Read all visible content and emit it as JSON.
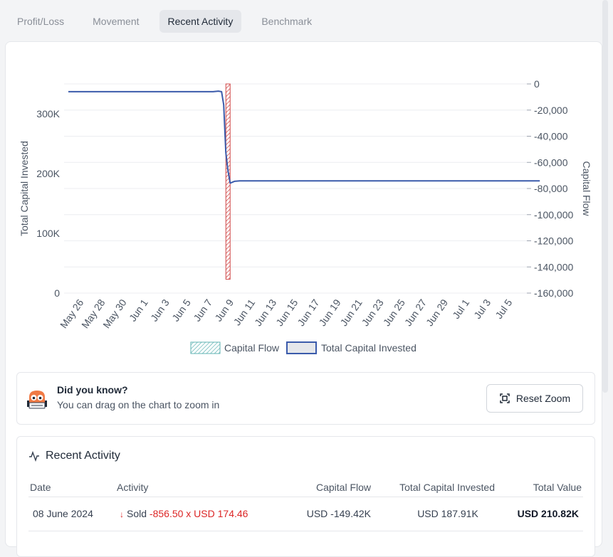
{
  "tabs": [
    {
      "label": "Profit/Loss",
      "active": false
    },
    {
      "label": "Movement",
      "active": false
    },
    {
      "label": "Recent Activity",
      "active": true
    },
    {
      "label": "Benchmark",
      "active": false
    }
  ],
  "chart_data": {
    "type": "line",
    "title": "",
    "x_dates": [
      "May 26",
      "May 28",
      "May 30",
      "Jun 1",
      "Jun 3",
      "Jun 5",
      "Jun 7",
      "Jun 9",
      "Jun 11",
      "Jun 13",
      "Jun 15",
      "Jun 17",
      "Jun 19",
      "Jun 21",
      "Jun 23",
      "Jun 25",
      "Jun 27",
      "Jun 29",
      "Jul 1",
      "Jul 3",
      "Jul 5"
    ],
    "left_axis": {
      "label": "Total Capital Invested",
      "ticks": [
        "0",
        "100K",
        "200K",
        "300K"
      ],
      "ylim": [
        0,
        350000
      ]
    },
    "right_axis": {
      "label": "Capital Flow",
      "ticks": [
        "0",
        "-20,000",
        "-40,000",
        "-60,000",
        "-80,000",
        "-100,000",
        "-120,000",
        "-140,000",
        "-160,000"
      ],
      "ylim": [
        -160000,
        0
      ]
    },
    "series": [
      {
        "name": "Total Capital Invested",
        "kind": "line",
        "color": "#3b5bab",
        "points": [
          {
            "day": 0,
            "value": 337000
          },
          {
            "day": 13.5,
            "value": 337000
          },
          {
            "day": 14.0,
            "value": 338000
          },
          {
            "day": 14.3,
            "value": 337000
          },
          {
            "day": 14.5,
            "value": 315000
          },
          {
            "day": 14.7,
            "value": 235000
          },
          {
            "day": 14.9,
            "value": 205000
          },
          {
            "day": 15.1,
            "value": 184000
          },
          {
            "day": 15.5,
            "value": 187000
          },
          {
            "day": 16.0,
            "value": 187910
          },
          {
            "day": 44.0,
            "value": 187910
          }
        ]
      },
      {
        "name": "Capital Flow",
        "kind": "bar",
        "color": "#d14a4a",
        "day": 14.9,
        "value": -149420
      }
    ],
    "legend": [
      {
        "label": "Capital Flow",
        "swatch": "hatched"
      },
      {
        "label": "Total Capital Invested",
        "swatch": "solid"
      }
    ]
  },
  "tip": {
    "title": "Did you know?",
    "text": "You can drag on the chart to zoom in",
    "reset_label": "Reset Zoom"
  },
  "activity": {
    "title": "Recent Activity",
    "columns": [
      "Date",
      "Activity",
      "Capital Flow",
      "Total Capital Invested",
      "Total Value"
    ],
    "rows": [
      {
        "date": "08 June 2024",
        "action": "Sold",
        "detail": "-856.50 x USD 174.46",
        "capital_flow": "USD -149.42K",
        "total_capital": "USD 187.91K",
        "total_value": "USD 210.82K"
      }
    ]
  }
}
